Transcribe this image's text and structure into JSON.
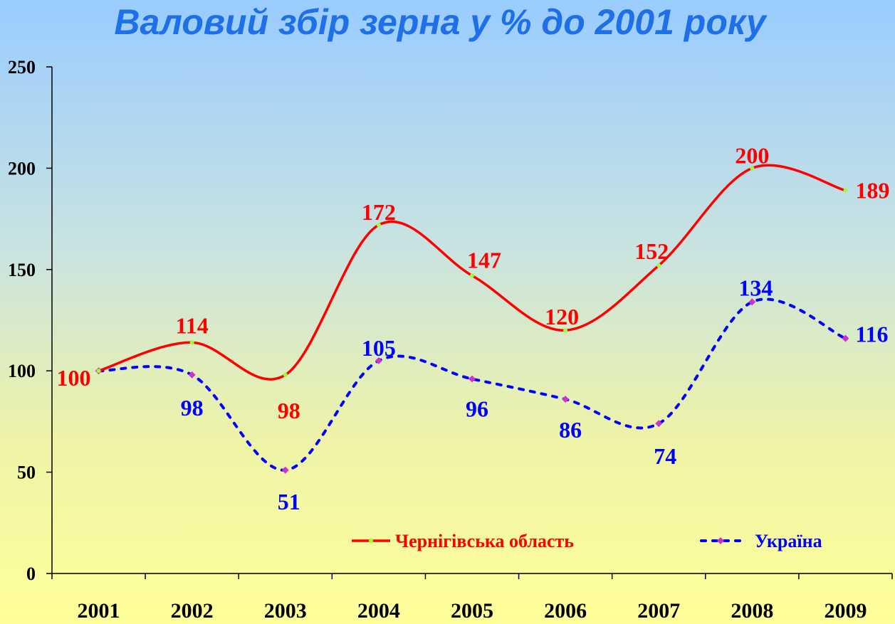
{
  "chart_data": {
    "type": "line",
    "title": "Валовий збір зерна у % до 2001 року",
    "xlabel": "",
    "ylabel": "",
    "categories": [
      "2001",
      "2002",
      "2003",
      "2004",
      "2005",
      "2006",
      "2007",
      "2008",
      "2009"
    ],
    "ylim": [
      0,
      250
    ],
    "yticks": [
      0,
      50,
      100,
      150,
      200,
      250
    ],
    "grid": false,
    "legend_position": "bottom-right",
    "series": [
      {
        "name": "Чернігівська область",
        "values": [
          100,
          114,
          98,
          172,
          147,
          120,
          152,
          200,
          189
        ],
        "line_color": "#ff0000",
        "marker_color": "#99ff33",
        "line_style": "solid"
      },
      {
        "name": "Україна",
        "values": [
          100,
          98,
          51,
          105,
          96,
          86,
          74,
          134,
          116
        ],
        "line_color": "#0000ff",
        "marker_color": "#cc33cc",
        "line_style": "dotted"
      }
    ]
  }
}
